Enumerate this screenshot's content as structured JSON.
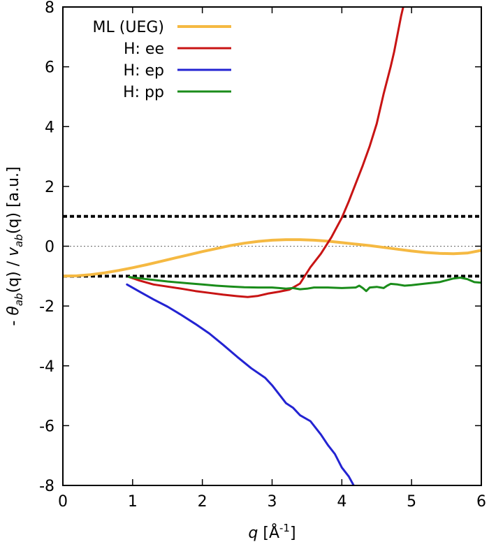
{
  "chart_data": {
    "type": "line",
    "xlabel": {
      "var": "q",
      "unit_pre": " [Å",
      "unit_sup": "-1",
      "unit_post": "]"
    },
    "ylabel": {
      "pre": "- ",
      "num": "θ",
      "num_sub": "ab",
      "num_arg": "(q)",
      "sep": " / ",
      "den": "v",
      "den_sub": "ab",
      "den_arg": "(q)",
      "unit": " [a.u.]"
    },
    "xlim": [
      0,
      6
    ],
    "ylim": [
      -8,
      8
    ],
    "xticks": [
      0,
      1,
      2,
      3,
      4,
      5,
      6
    ],
    "yticks": [
      -8,
      -6,
      -4,
      -2,
      0,
      2,
      4,
      6,
      8
    ],
    "reference_lines": [
      {
        "y": 1,
        "style": "dashed-thick",
        "color": "#000000"
      },
      {
        "y": -1,
        "style": "dashed-thick",
        "color": "#000000"
      },
      {
        "y": 0,
        "style": "dotted-thin",
        "color": "#666666"
      }
    ],
    "legend_position": "top-left",
    "series": [
      {
        "name": "ML (UEG)",
        "color": "#f5b942",
        "width": 4,
        "x": [
          0,
          0.2,
          0.4,
          0.6,
          0.8,
          1.0,
          1.2,
          1.4,
          1.6,
          1.8,
          2.0,
          2.2,
          2.4,
          2.6,
          2.8,
          3.0,
          3.2,
          3.4,
          3.6,
          3.8,
          4.0,
          4.2,
          4.4,
          4.6,
          4.8,
          5.0,
          5.2,
          5.4,
          5.6,
          5.8,
          6.0
        ],
        "y": [
          -1.0,
          -0.99,
          -0.95,
          -0.89,
          -0.81,
          -0.72,
          -0.62,
          -0.51,
          -0.4,
          -0.29,
          -0.18,
          -0.08,
          0.02,
          0.1,
          0.16,
          0.2,
          0.22,
          0.22,
          0.2,
          0.17,
          0.12,
          0.07,
          0.02,
          -0.04,
          -0.1,
          -0.16,
          -0.21,
          -0.24,
          -0.25,
          -0.23,
          -0.14
        ]
      },
      {
        "name": "H: ee",
        "color": "#c81414",
        "width": 3,
        "x": [
          0.95,
          1.1,
          1.3,
          1.5,
          1.7,
          1.9,
          2.1,
          2.3,
          2.5,
          2.65,
          2.8,
          2.95,
          3.1,
          3.25,
          3.4,
          3.55,
          3.7,
          3.85,
          4.0,
          4.1,
          4.2,
          4.3,
          4.4,
          4.5,
          4.6,
          4.7,
          4.75,
          4.8,
          4.85,
          4.88
        ],
        "y": [
          -1.03,
          -1.15,
          -1.28,
          -1.35,
          -1.42,
          -1.5,
          -1.56,
          -1.62,
          -1.67,
          -1.7,
          -1.66,
          -1.58,
          -1.52,
          -1.45,
          -1.25,
          -0.7,
          -0.25,
          0.3,
          0.95,
          1.5,
          2.1,
          2.7,
          3.35,
          4.1,
          5.1,
          6.0,
          6.5,
          7.1,
          7.7,
          8.0
        ]
      },
      {
        "name": "H: ep",
        "color": "#2323d2",
        "width": 3,
        "x": [
          0.92,
          1.1,
          1.3,
          1.5,
          1.7,
          1.9,
          2.1,
          2.3,
          2.5,
          2.7,
          2.9,
          3.0,
          3.1,
          3.2,
          3.3,
          3.4,
          3.55,
          3.7,
          3.8,
          3.9,
          4.0,
          4.1,
          4.17
        ],
        "y": [
          -1.28,
          -1.52,
          -1.78,
          -2.02,
          -2.3,
          -2.6,
          -2.92,
          -3.3,
          -3.7,
          -4.08,
          -4.4,
          -4.65,
          -4.95,
          -5.25,
          -5.4,
          -5.65,
          -5.85,
          -6.3,
          -6.65,
          -6.95,
          -7.4,
          -7.7,
          -8.0
        ]
      },
      {
        "name": "H: pp",
        "color": "#1a8c1a",
        "width": 3,
        "x": [
          0.95,
          1.2,
          1.5,
          1.8,
          2.0,
          2.2,
          2.4,
          2.6,
          2.8,
          3.0,
          3.1,
          3.2,
          3.3,
          3.4,
          3.5,
          3.6,
          3.8,
          4.0,
          4.2,
          4.25,
          4.3,
          4.35,
          4.4,
          4.5,
          4.6,
          4.65,
          4.7,
          4.8,
          4.9,
          5.0,
          5.2,
          5.4,
          5.6,
          5.7,
          5.8,
          5.9,
          6.0
        ],
        "y": [
          -1.03,
          -1.1,
          -1.18,
          -1.24,
          -1.28,
          -1.32,
          -1.35,
          -1.37,
          -1.38,
          -1.38,
          -1.4,
          -1.42,
          -1.4,
          -1.44,
          -1.42,
          -1.38,
          -1.38,
          -1.4,
          -1.38,
          -1.32,
          -1.4,
          -1.5,
          -1.38,
          -1.36,
          -1.4,
          -1.32,
          -1.26,
          -1.28,
          -1.32,
          -1.3,
          -1.25,
          -1.2,
          -1.08,
          -1.05,
          -1.1,
          -1.2,
          -1.22
        ]
      }
    ]
  }
}
